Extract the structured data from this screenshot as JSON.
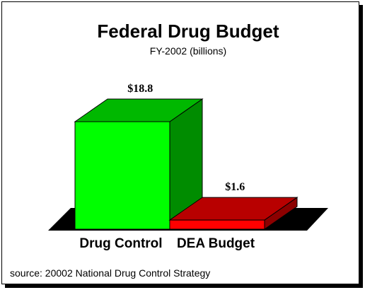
{
  "chart_data": {
    "type": "bar",
    "title": "Federal Drug Budget",
    "subtitle": "FY-2002  (billions)",
    "categories": [
      "Drug Control",
      "DEA Budget"
    ],
    "values": [
      18.8,
      1.6
    ],
    "value_labels": [
      "$18.8",
      "$1.6"
    ],
    "colors": [
      "#00ff00",
      "#ff0000"
    ],
    "style": "3d",
    "ylim": [
      0,
      18.8
    ]
  },
  "footer": {
    "source": "source: 20002 National Drug Control Strategy"
  }
}
